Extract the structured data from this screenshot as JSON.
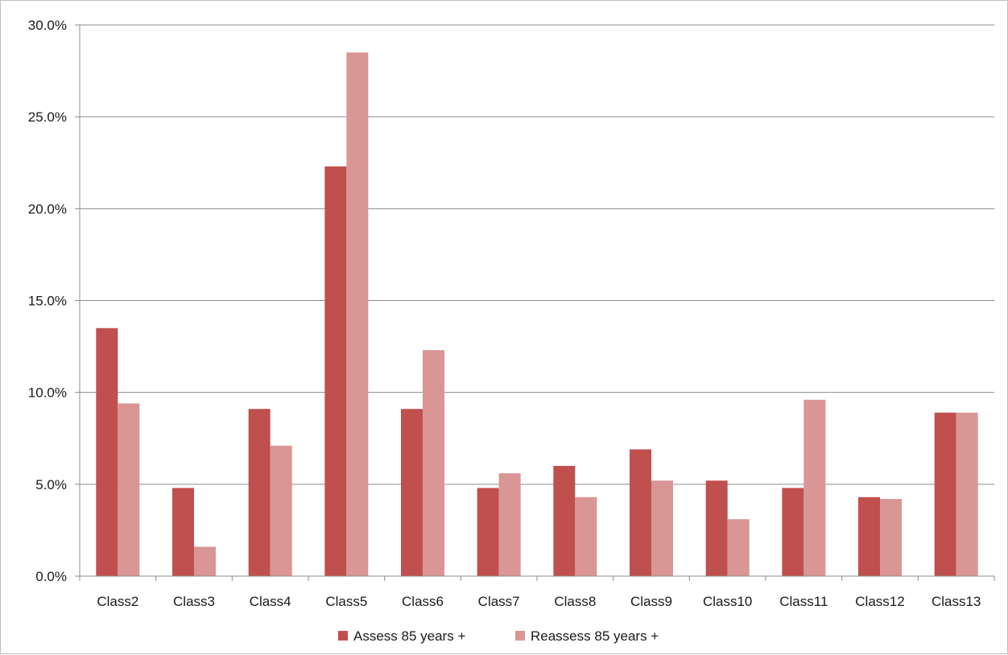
{
  "chart_data": {
    "type": "bar",
    "title": "",
    "xlabel": "",
    "ylabel": "",
    "categories": [
      "Class2",
      "Class3",
      "Class4",
      "Class5",
      "Class6",
      "Class7",
      "Class8",
      "Class9",
      "Class10",
      "Class11",
      "Class12",
      "Class13"
    ],
    "series": [
      {
        "name": "Assess 85 years +",
        "color": "#c0504d",
        "values": [
          13.5,
          4.8,
          9.1,
          22.3,
          9.1,
          4.8,
          6.0,
          6.9,
          5.2,
          4.8,
          4.3,
          8.9
        ]
      },
      {
        "name": "Reassess 85 years +",
        "color": "#d99694",
        "values": [
          9.4,
          1.6,
          7.1,
          28.5,
          12.3,
          5.6,
          4.3,
          5.2,
          3.1,
          9.6,
          4.2,
          8.9
        ]
      }
    ],
    "ylim": [
      0,
      30
    ],
    "yticks": [
      0,
      5,
      10,
      15,
      20,
      25,
      30
    ],
    "ytick_labels": [
      "0.0%",
      "5.0%",
      "10.0%",
      "15.0%",
      "20.0%",
      "25.0%",
      "30.0%"
    ],
    "grid": true,
    "legend_position": "bottom"
  }
}
